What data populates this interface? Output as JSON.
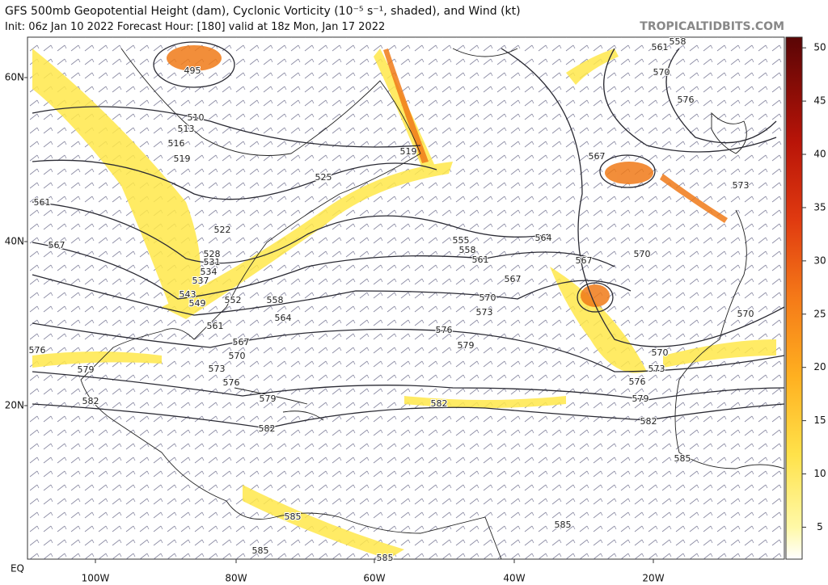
{
  "header": {
    "title": "GFS 500mb Geopotential Height (dam), Cyclonic Vorticity (10⁻⁵ s⁻¹, shaded), and Wind (kt)",
    "subtitle": "Init: 06z Jan 10 2022   Forecast Hour: [180]   valid at 18z Mon, Jan 17 2022",
    "credit": "TROPICALTIDBITS.COM"
  },
  "map": {
    "lat_labels": [
      "60N",
      "40N",
      "20N",
      "EQ"
    ],
    "lon_labels": [
      "100W",
      "80W",
      "60W",
      "40W",
      "20W"
    ],
    "contour_labels": [
      "495",
      "510",
      "513",
      "516",
      "519",
      "525",
      "519",
      "522",
      "528",
      "531",
      "534",
      "537",
      "543",
      "549",
      "552",
      "558",
      "561",
      "564",
      "567",
      "570",
      "573",
      "576",
      "579",
      "582",
      "561",
      "567",
      "576",
      "579",
      "582",
      "555",
      "558",
      "561",
      "564",
      "567",
      "570",
      "573",
      "576",
      "579",
      "582",
      "582",
      "579",
      "576",
      "573",
      "570",
      "570",
      "570",
      "567",
      "567",
      "573",
      "576",
      "570",
      "561",
      "558",
      "585",
      "585",
      "585",
      "585",
      "585"
    ]
  },
  "colorbar": {
    "range": [
      2,
      51
    ],
    "ticks": [
      5,
      10,
      15,
      20,
      25,
      30,
      35,
      40,
      45,
      50
    ]
  }
}
